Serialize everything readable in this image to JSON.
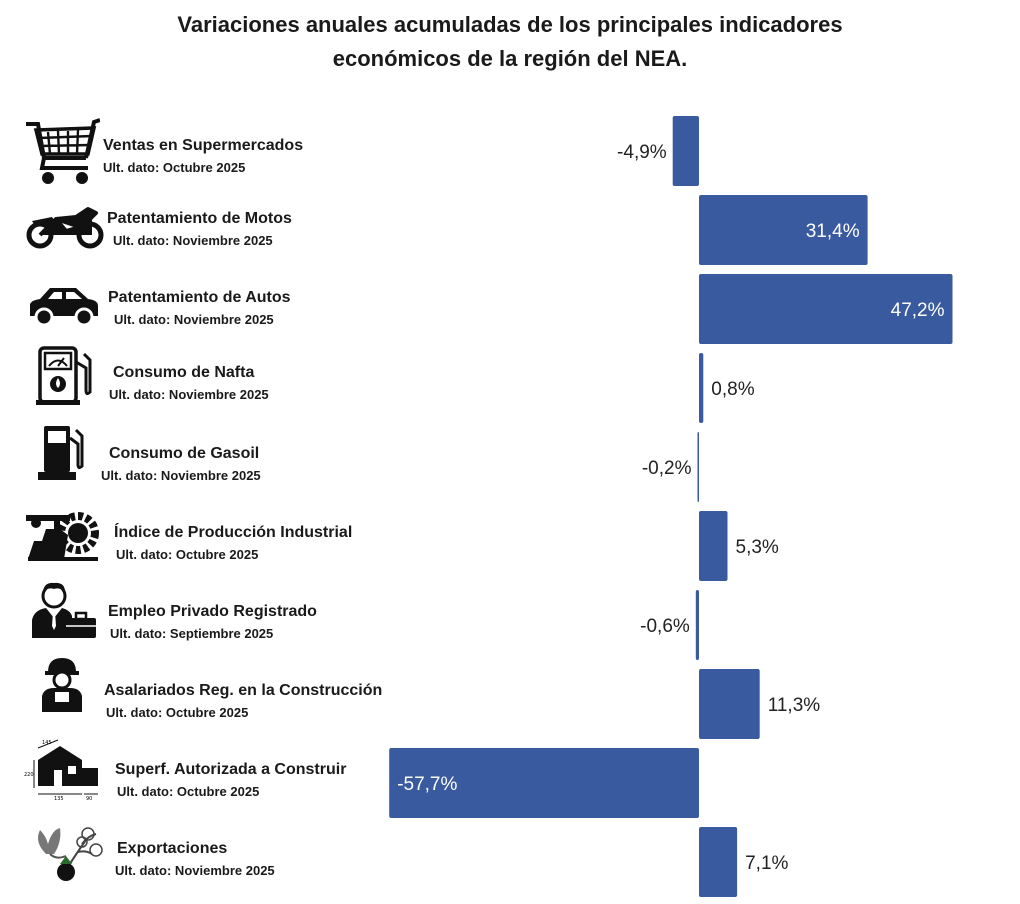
{
  "chart_data": {
    "type": "bar",
    "orientation": "horizontal",
    "title": "Variaciones anuales acumuladas de los principales indicadores económicos de la región del NEA.",
    "title_lines": [
      "Variaciones anuales acumuladas de los principales indicadores",
      "económicos de la región del NEA."
    ],
    "bar_color": "#3a5a9f",
    "categories": [
      {
        "name": "Ventas en Supermercados",
        "date": "Ult. dato: Octubre 2025",
        "icon": "shopping-cart-icon"
      },
      {
        "name": "Patentamiento de Motos",
        "date": "Ult. dato: Noviembre 2025",
        "icon": "motorcycle-icon"
      },
      {
        "name": "Patentamiento de Autos",
        "date": "Ult. dato: Noviembre 2025",
        "icon": "car-icon"
      },
      {
        "name": "Consumo de Nafta",
        "date": "Ult. dato: Noviembre 2025",
        "icon": "fuel-gauge-icon"
      },
      {
        "name": "Consumo de Gasoil",
        "date": "Ult. dato: Noviembre 2025",
        "icon": "fuel-pump-icon"
      },
      {
        "name": "Índice de Producción Industrial",
        "date": "Ult. dato: Octubre 2025",
        "icon": "industry-gear-icon"
      },
      {
        "name": "Empleo Privado Registrado",
        "date": "Ult. dato: Septiembre 2025",
        "icon": "businessman-icon"
      },
      {
        "name": "Asalariados Reg. en la Construcción",
        "date": "Ult. dato: Octubre 2025",
        "icon": "construction-worker-icon"
      },
      {
        "name": "Superf. Autorizada a Construir",
        "date": "Ult. dato: Octubre 2025",
        "icon": "house-blueprint-icon"
      },
      {
        "name": "Exportaciones",
        "date": "Ult. dato: Noviembre 2025",
        "icon": "cotton-plant-icon"
      }
    ],
    "values": [
      -4.9,
      31.4,
      47.2,
      0.8,
      -0.2,
      5.3,
      -0.6,
      11.3,
      -57.7,
      7.1
    ],
    "value_labels": [
      "-4,9%",
      "31,4%",
      "47,2%",
      "0,8%",
      "-0,2%",
      "5,3%",
      "-0,6%",
      "11,3%",
      "-57,7%",
      "7,1%"
    ],
    "icon_marks": {
      "house_dims": [
        "145",
        "220",
        "135",
        "90"
      ]
    }
  }
}
